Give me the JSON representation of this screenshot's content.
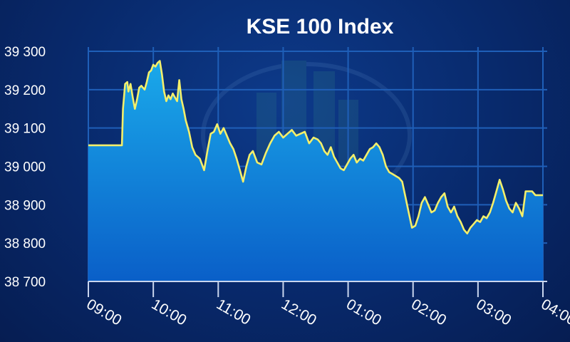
{
  "chart_data": {
    "type": "area",
    "title": "KSE 100 Index",
    "xlabel": "",
    "ylabel": "",
    "ylim": [
      38700,
      39300
    ],
    "y_ticks": [
      39300,
      39200,
      39100,
      39000,
      38900,
      38800,
      38700
    ],
    "y_tick_labels": [
      "39 300",
      "39 200",
      "39 100",
      "39 000",
      "38 900",
      "38 800",
      "38 700"
    ],
    "x_tick_labels": [
      "09:00",
      "10:00",
      "11:00",
      "12:00",
      "01:00",
      "02:00",
      "03:00",
      "04:00"
    ],
    "x_unit": "minutes since 09:00",
    "xlim": [
      0,
      420
    ],
    "grid": true,
    "colors": {
      "line": "#f4ef6a",
      "fill_top": "#1aa9ea",
      "fill_bottom": "#0a5fc8",
      "grid": "#1f5fb8"
    },
    "series": [
      {
        "name": "",
        "x": [
          0,
          31,
          32,
          34,
          36,
          37,
          39,
          41,
          43,
          45,
          47,
          49,
          52,
          54,
          56,
          58,
          60,
          62,
          64,
          66,
          68,
          70,
          72,
          74,
          76,
          78,
          80,
          82,
          84,
          86,
          88,
          90,
          93,
          96,
          99,
          103,
          107,
          110,
          113,
          116,
          119,
          122,
          125,
          128,
          131,
          134,
          137,
          140,
          143,
          146,
          149,
          152,
          156,
          160,
          164,
          168,
          172,
          176,
          180,
          184,
          188,
          192,
          196,
          200,
          204,
          208,
          212,
          215,
          218,
          221,
          224,
          227,
          230,
          233,
          236,
          239,
          242,
          245,
          248,
          251,
          254,
          257,
          260,
          263,
          266,
          269,
          272,
          275,
          278,
          281,
          284,
          287,
          290,
          293,
          296,
          299,
          302,
          305,
          308,
          311,
          314,
          317,
          320,
          323,
          326,
          329,
          332,
          335,
          338,
          341,
          344,
          347,
          350,
          353,
          356,
          359,
          362,
          365,
          368,
          371,
          374,
          377,
          380,
          383,
          386,
          389,
          392,
          395,
          398,
          401,
          404,
          407,
          410,
          413,
          416,
          420
        ],
        "y": [
          39055,
          39055,
          39150,
          39215,
          39220,
          39195,
          39215,
          39180,
          39150,
          39175,
          39205,
          39210,
          39200,
          39220,
          39245,
          39250,
          39265,
          39260,
          39270,
          39275,
          39240,
          39195,
          39170,
          39185,
          39175,
          39190,
          39180,
          39170,
          39225,
          39175,
          39150,
          39120,
          39090,
          39050,
          39030,
          39020,
          38990,
          39040,
          39085,
          39090,
          39110,
          39085,
          39100,
          39080,
          39060,
          39045,
          39020,
          38990,
          38960,
          39000,
          39030,
          39040,
          39010,
          39005,
          39035,
          39060,
          39080,
          39090,
          39075,
          39085,
          39095,
          39080,
          39085,
          39090,
          39060,
          39075,
          39070,
          39060,
          39040,
          39030,
          39050,
          39025,
          39010,
          38995,
          38990,
          39005,
          39020,
          39030,
          39010,
          39020,
          39015,
          39030,
          39045,
          39050,
          39060,
          39050,
          39030,
          39000,
          38985,
          38980,
          38975,
          38970,
          38960,
          38920,
          38880,
          38840,
          38845,
          38870,
          38905,
          38920,
          38900,
          38880,
          38885,
          38905,
          38920,
          38930,
          38895,
          38880,
          38895,
          38870,
          38855,
          38835,
          38825,
          38840,
          38850,
          38860,
          38855,
          38870,
          38865,
          38880,
          38905,
          38935,
          38965,
          38940,
          38910,
          38890,
          38880,
          38905,
          38890,
          38870,
          38935,
          38935,
          38935,
          38925,
          38925,
          38925
        ]
      }
    ]
  }
}
